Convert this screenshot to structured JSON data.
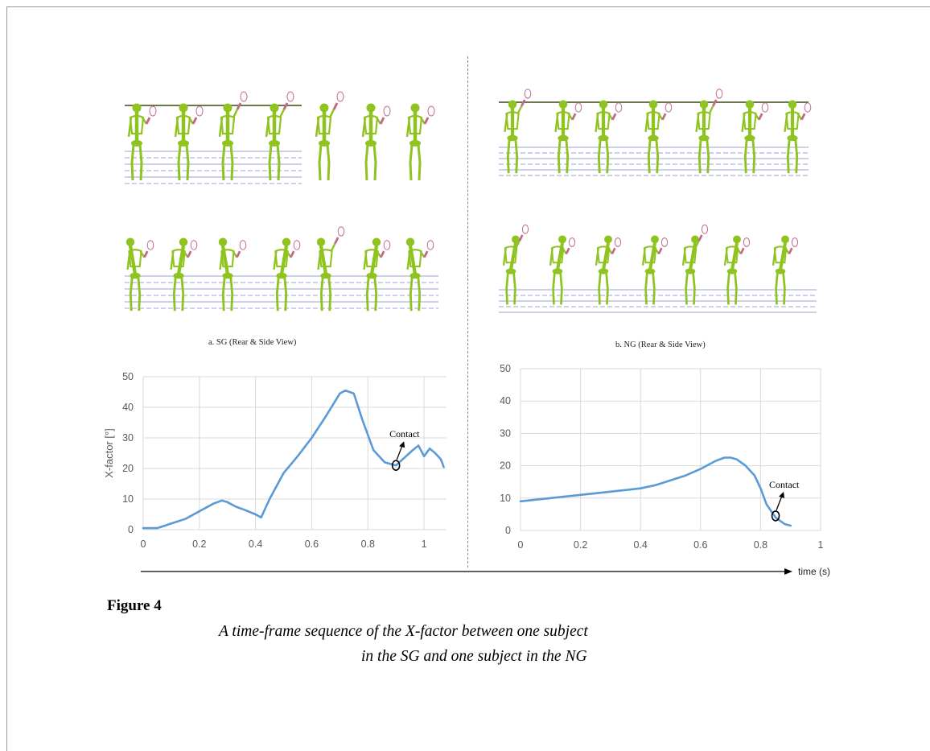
{
  "figure": {
    "label": "Figure 4",
    "caption_line1": "A time-frame sequence of the X-factor between one subject",
    "caption_line2": "in the SG and one subject in the NG"
  },
  "sequences": {
    "sg_caption": "a. SG (Rear & Side View)",
    "ng_caption": "b. NG (Rear & Side View)",
    "figure_color": "#8fc31f",
    "racket_color": "#c06a8a"
  },
  "time_axis_label": "time (s)",
  "chart_data": [
    {
      "type": "line",
      "panel": "SG",
      "xlabel": "",
      "ylabel": "X-factor [°]",
      "xlim": [
        0,
        1.08
      ],
      "ylim": [
        0,
        50
      ],
      "xticks": [
        "0",
        "0.2",
        "0.4",
        "0.6",
        "0.8",
        "1"
      ],
      "yticks": [
        "0",
        "10",
        "20",
        "30",
        "40",
        "50"
      ],
      "grid": true,
      "color": "#5b9bd5",
      "annotation": {
        "text": "Contact",
        "x": 0.9,
        "y": 21
      },
      "series": [
        {
          "x": [
            0,
            0.05,
            0.1,
            0.15,
            0.2,
            0.25,
            0.28,
            0.3,
            0.33,
            0.36,
            0.4,
            0.42,
            0.45,
            0.5,
            0.55,
            0.6,
            0.65,
            0.7,
            0.72,
            0.75,
            0.78,
            0.82,
            0.86,
            0.9,
            0.93,
            0.96,
            0.98,
            1.0,
            1.02,
            1.04,
            1.06,
            1.07
          ],
          "y": [
            0.5,
            0.5,
            2,
            3.5,
            6,
            8.5,
            9.5,
            9,
            7.5,
            6.5,
            5,
            4,
            10,
            18.5,
            24,
            30,
            37,
            44.5,
            45.5,
            44.5,
            36,
            26,
            22,
            21,
            23.5,
            26,
            27.5,
            24,
            26.5,
            25,
            23,
            20.5
          ]
        }
      ]
    },
    {
      "type": "line",
      "panel": "NG",
      "xlabel": "",
      "ylabel": "",
      "xlim": [
        0,
        1
      ],
      "ylim": [
        0,
        50
      ],
      "xticks": [
        "0",
        "0.2",
        "0.4",
        "0.6",
        "0.8",
        "1"
      ],
      "yticks": [
        "0",
        "10",
        "20",
        "30",
        "40",
        "50"
      ],
      "grid": true,
      "color": "#5b9bd5",
      "annotation": {
        "text": "Contact",
        "x": 0.85,
        "y": 4.5
      },
      "series": [
        {
          "x": [
            0,
            0.1,
            0.2,
            0.25,
            0.3,
            0.35,
            0.4,
            0.45,
            0.5,
            0.55,
            0.6,
            0.65,
            0.68,
            0.7,
            0.72,
            0.75,
            0.78,
            0.8,
            0.82,
            0.85,
            0.88,
            0.9
          ],
          "y": [
            9,
            10,
            11,
            11.5,
            12,
            12.5,
            13,
            14,
            15.5,
            17,
            19,
            21.5,
            22.5,
            22.5,
            22,
            20,
            17,
            13,
            8,
            4,
            2,
            1.5
          ]
        }
      ]
    }
  ]
}
